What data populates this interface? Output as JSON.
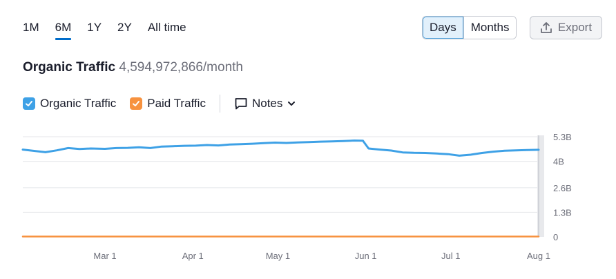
{
  "range_tabs": [
    {
      "label": "1M",
      "active": false
    },
    {
      "label": "6M",
      "active": true
    },
    {
      "label": "1Y",
      "active": false
    },
    {
      "label": "2Y",
      "active": false
    },
    {
      "label": "All time",
      "active": false
    }
  ],
  "granularity": {
    "days_label": "Days",
    "months_label": "Months",
    "selected": "Days"
  },
  "export_label": "Export",
  "title": {
    "name": "Organic Traffic",
    "value": "4,594,972,866/month"
  },
  "legend": {
    "organic_label": "Organic Traffic",
    "paid_label": "Paid Traffic",
    "notes_label": "Notes"
  },
  "colors": {
    "organic": "#3ea1e6",
    "paid": "#f7923f",
    "accent": "#006dca"
  },
  "chart_data": {
    "type": "line",
    "x_start": "2024-02-01",
    "x_end": "2024-08-01",
    "x_ticks": [
      "Mar 1",
      "Apr 1",
      "May 1",
      "Jun 1",
      "Jul 1",
      "Aug 1"
    ],
    "y_ticks": [
      "5.3B",
      "4B",
      "2.6B",
      "1.3B",
      "0"
    ],
    "ylim": [
      0,
      5.3
    ],
    "yunit": "B",
    "grid": true,
    "series": [
      {
        "name": "Organic Traffic",
        "color": "#3ea1e6",
        "x": [
          "2024-02-01",
          "2024-02-05",
          "2024-02-09",
          "2024-02-13",
          "2024-02-17",
          "2024-02-21",
          "2024-02-25",
          "2024-03-01",
          "2024-03-05",
          "2024-03-09",
          "2024-03-13",
          "2024-03-17",
          "2024-03-21",
          "2024-03-25",
          "2024-03-29",
          "2024-04-02",
          "2024-04-06",
          "2024-04-10",
          "2024-04-14",
          "2024-04-18",
          "2024-04-22",
          "2024-04-26",
          "2024-04-30",
          "2024-05-04",
          "2024-05-08",
          "2024-05-12",
          "2024-05-16",
          "2024-05-20",
          "2024-05-24",
          "2024-05-28",
          "2024-05-31",
          "2024-06-02",
          "2024-06-06",
          "2024-06-10",
          "2024-06-14",
          "2024-06-18",
          "2024-06-22",
          "2024-06-26",
          "2024-06-30",
          "2024-07-04",
          "2024-07-08",
          "2024-07-12",
          "2024-07-16",
          "2024-07-20",
          "2024-07-24",
          "2024-07-28",
          "2024-08-01"
        ],
        "values": [
          4.62,
          4.55,
          4.48,
          4.58,
          4.7,
          4.65,
          4.68,
          4.66,
          4.7,
          4.71,
          4.74,
          4.7,
          4.78,
          4.8,
          4.82,
          4.83,
          4.86,
          4.84,
          4.89,
          4.91,
          4.93,
          4.96,
          4.99,
          4.97,
          5.0,
          5.02,
          5.04,
          5.05,
          5.07,
          5.1,
          5.09,
          4.68,
          4.62,
          4.57,
          4.47,
          4.45,
          4.44,
          4.41,
          4.38,
          4.3,
          4.35,
          4.44,
          4.51,
          4.56,
          4.58,
          4.6,
          4.61
        ]
      },
      {
        "name": "Paid Traffic",
        "color": "#f7923f",
        "x": [
          "2024-02-01",
          "2024-08-01"
        ],
        "values": [
          0.02,
          0.02
        ]
      }
    ]
  }
}
